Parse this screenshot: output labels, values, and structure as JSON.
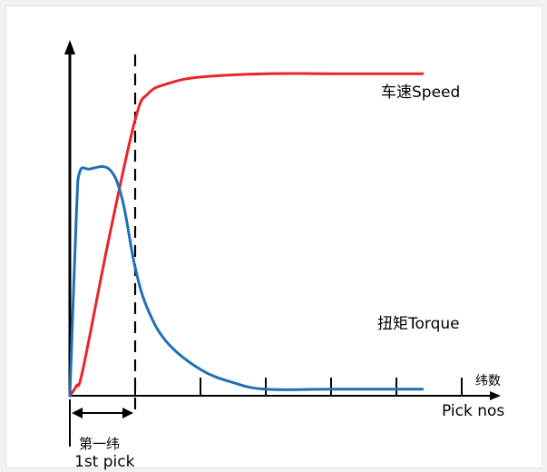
{
  "chart_data": {
    "type": "line",
    "x_unit_label_cn": "纬数",
    "x_unit_label_en": "Pick nos",
    "x_ticks": [
      0,
      1,
      2,
      3,
      4,
      5,
      6
    ],
    "grid": false,
    "series": [
      {
        "name_cn": "车速",
        "name_en": "Speed",
        "color": "#e8242c",
        "x": [
          0,
          0.1,
          0.2,
          0.6,
          1.0,
          1.2,
          1.5,
          2.0,
          3.0,
          4.0,
          5.4
        ],
        "y": [
          0,
          3,
          8,
          48,
          84,
          92,
          95,
          97,
          98,
          98,
          98
        ]
      },
      {
        "name_cn": "扭矩",
        "name_en": "Torque",
        "color": "#1f6fb8",
        "x": [
          0,
          0.1,
          0.15,
          0.3,
          0.6,
          0.8,
          1.0,
          1.2,
          1.5,
          2.0,
          2.5,
          3.0,
          4.0,
          5.4
        ],
        "y": [
          0,
          55,
          68,
          69,
          69,
          60,
          39,
          26,
          16,
          8,
          4,
          2,
          2,
          2
        ]
      }
    ],
    "first_pick_label_cn": "第一纬",
    "first_pick_label_en": "1st pick",
    "first_pick_x": 1
  },
  "colors": {
    "speed": "#e8242c",
    "torque": "#1f6fb8",
    "axis": "#000000"
  }
}
